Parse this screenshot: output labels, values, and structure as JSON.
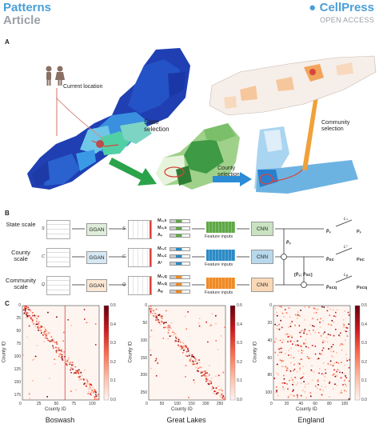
{
  "header": {
    "journal_line1": "Patterns",
    "journal_line2": "Article",
    "publisher": "CellPress",
    "publisher_sub": "OPEN ACCESS"
  },
  "panel_a": {
    "label": "A",
    "current_location": "Current location",
    "state_selection": "State selection",
    "county_selection": "County selection",
    "community_selection": "Community selection"
  },
  "panel_b": {
    "label": "B",
    "rows": [
      {
        "scale": "State scale",
        "sym": "S",
        "sym2": "S",
        "m1": "M₁,s",
        "m2": "M₂,s",
        "a": "Aₛ",
        "gan": "GGAN",
        "cnn": "CNN",
        "loss": "Lₛ",
        "out": "P̂ₛ",
        "gt": "Pₛ",
        "color": "#5fa846"
      },
      {
        "scale": "County scale",
        "sym": "C",
        "sym2": "C",
        "m1": "M₁,c",
        "m2": "M₂,c",
        "a": "Aᶜ",
        "gan": "GGAN",
        "cnn": "CNN",
        "loss": "Lᶜ",
        "out": "P̂sc",
        "gt": "Psc",
        "color": "#2b8bc6"
      },
      {
        "scale": "Community scale",
        "sym": "Q",
        "sym2": "Q",
        "m1": "M₁,q",
        "m2": "M₂,q",
        "a": "Aᵩ",
        "gan": "GGAN",
        "cnn": "CNN",
        "loss": "Lᵩ",
        "out": "P̂scq",
        "gt": "Pscq",
        "color": "#f08a24"
      }
    ],
    "feature_inputs": "Feature inputs",
    "ps_label": "P̂ₛ",
    "concat_label": "[P̂ₛ; P̂sc]"
  },
  "panel_c": {
    "label": "C",
    "charts": [
      {
        "xlabel": "County ID",
        "ylabel": "County ID",
        "title": "Boswash",
        "xticks": [
          "0",
          "25",
          "50",
          "75",
          "100"
        ],
        "yticks": [
          "0",
          "25",
          "50",
          "75",
          "100",
          "125",
          "150",
          "175"
        ],
        "cbar": [
          "0.5",
          "0.4",
          "0.3",
          "0.2",
          "0.1",
          "0.0"
        ],
        "n": 180,
        "seed": 3,
        "mode": "diag"
      },
      {
        "xlabel": "County ID",
        "ylabel": "County ID",
        "title": "Great Lakes",
        "xticks": [
          "0",
          "50",
          "100",
          "150",
          "200",
          "250"
        ],
        "yticks": [
          "0",
          "50",
          "100",
          "150",
          "200",
          "250"
        ],
        "cbar": [
          "0.5",
          "0.4",
          "0.3",
          "0.2",
          "0.1",
          "0.0"
        ],
        "n": 260,
        "seed": 7,
        "mode": "diag"
      },
      {
        "xlabel": "County ID",
        "ylabel": "County ID",
        "title": "England",
        "xticks": [
          "0",
          "20",
          "40",
          "60",
          "80",
          "100"
        ],
        "yticks": [
          "0",
          "20",
          "40",
          "60",
          "80",
          "100"
        ],
        "cbar": [
          "0.5",
          "0.4",
          "0.3",
          "0.2",
          "0.1",
          "0.0"
        ],
        "n": 110,
        "seed": 11,
        "mode": "scatter"
      }
    ],
    "cbar_colors": [
      "#fff5f0",
      "#fdbba3",
      "#fb6a4a",
      "#cb181d",
      "#67000d"
    ]
  }
}
